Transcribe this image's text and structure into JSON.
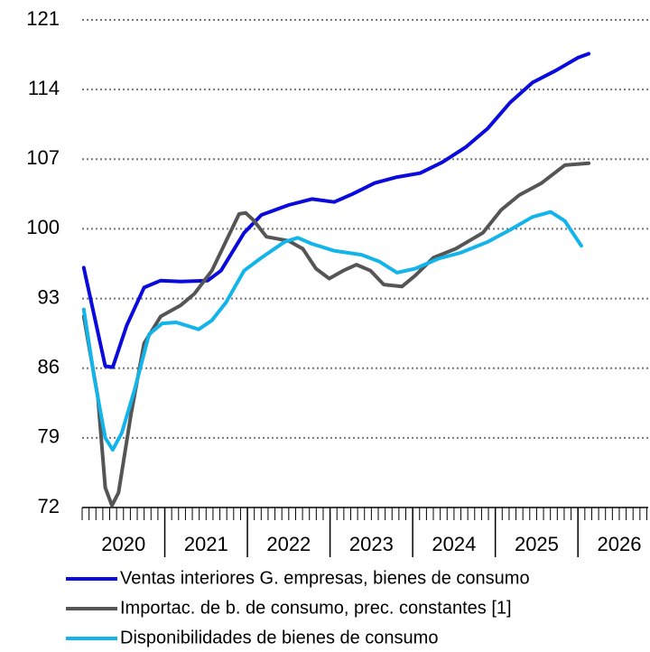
{
  "chart_data": {
    "type": "line",
    "ylim": [
      72,
      121
    ],
    "yticks": [
      72,
      79,
      86,
      93,
      100,
      107,
      114,
      121
    ],
    "grid": true,
    "xlim": [
      2020,
      2026.85
    ],
    "xticks": [
      {
        "value": 2020.5,
        "label": "2020"
      },
      {
        "value": 2021.5,
        "label": "2021"
      },
      {
        "value": 2022.5,
        "label": "2022"
      },
      {
        "value": 2023.5,
        "label": "2023"
      },
      {
        "value": 2024.5,
        "label": "2024"
      },
      {
        "value": 2025.5,
        "label": "2025"
      },
      {
        "value": 2026.5,
        "label": "2026"
      }
    ],
    "legend": "bottom",
    "series": [
      {
        "name": "Ventas interiores G. empresas, bienes de consumo",
        "color": "#0a0adc",
        "x": [
          2020.02,
          2020.28,
          2020.37,
          2020.54,
          2020.75,
          2020.95,
          2021.19,
          2021.52,
          2021.68,
          2021.96,
          2022.17,
          2022.5,
          2022.78,
          2023.05,
          2023.27,
          2023.54,
          2023.81,
          2024.09,
          2024.36,
          2024.64,
          2024.91,
          2025.18,
          2025.45,
          2025.73,
          2026.0,
          2026.13
        ],
        "values": [
          96.1,
          86.2,
          86.1,
          90.3,
          94.1,
          94.8,
          94.7,
          94.8,
          95.8,
          99.6,
          101.4,
          102.4,
          103.0,
          102.7,
          103.5,
          104.6,
          105.2,
          105.6,
          106.7,
          108.2,
          110.1,
          112.7,
          114.7,
          115.9,
          117.2,
          117.6
        ]
      },
      {
        "name": "Importac. de b. de consumo, prec. constantes [1]",
        "color": "#555555",
        "x": [
          2020.02,
          2020.19,
          2020.28,
          2020.36,
          2020.44,
          2020.59,
          2020.75,
          2020.95,
          2021.19,
          2021.36,
          2021.57,
          2021.79,
          2021.9,
          2021.98,
          2022.07,
          2022.23,
          2022.5,
          2022.67,
          2022.83,
          2022.99,
          2023.16,
          2023.32,
          2023.49,
          2023.65,
          2023.87,
          2024.03,
          2024.25,
          2024.52,
          2024.85,
          2025.07,
          2025.29,
          2025.56,
          2025.84,
          2026.13
        ],
        "values": [
          91.2,
          83.1,
          74.0,
          72.2,
          73.5,
          81.3,
          88.5,
          91.2,
          92.3,
          93.5,
          95.8,
          99.6,
          101.5,
          101.6,
          100.9,
          99.2,
          98.8,
          98.0,
          96.0,
          95.0,
          95.8,
          96.4,
          95.8,
          94.4,
          94.2,
          95.3,
          97.1,
          98.0,
          99.6,
          101.9,
          103.4,
          104.6,
          106.4,
          106.6
        ]
      },
      {
        "name": "Disponibilidades de bienes de consumo",
        "color": "#12b4ea",
        "x": [
          2020.02,
          2020.15,
          2020.28,
          2020.37,
          2020.48,
          2020.64,
          2020.81,
          2020.97,
          2021.14,
          2021.41,
          2021.57,
          2021.74,
          2021.96,
          2022.17,
          2022.45,
          2022.61,
          2022.78,
          2023.05,
          2023.38,
          2023.6,
          2023.81,
          2024.03,
          2024.31,
          2024.58,
          2024.91,
          2025.18,
          2025.45,
          2025.67,
          2025.84,
          2026.04
        ],
        "values": [
          91.9,
          84.9,
          79.0,
          77.8,
          79.5,
          84.0,
          89.4,
          90.5,
          90.6,
          89.9,
          90.8,
          92.6,
          95.8,
          97.1,
          98.7,
          99.1,
          98.5,
          97.8,
          97.4,
          96.7,
          95.6,
          96.0,
          97.0,
          97.6,
          98.7,
          99.9,
          101.2,
          101.7,
          100.8,
          98.3
        ]
      }
    ]
  }
}
